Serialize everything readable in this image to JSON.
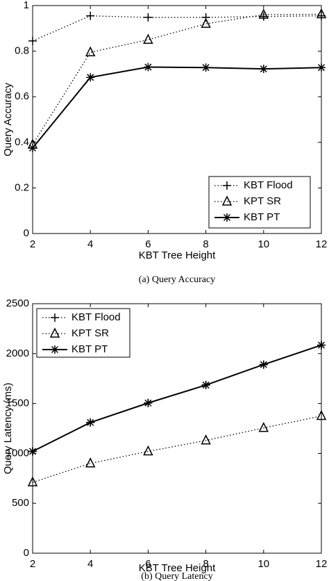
{
  "chart_data": [
    {
      "type": "line",
      "caption": "(a) Query Accuracy",
      "x_label": "KBT Tree Height",
      "y_label": "Query Accuracy",
      "x": [
        2,
        4,
        6,
        8,
        10,
        12
      ],
      "xlim": [
        2,
        12
      ],
      "xticks": [
        2,
        4,
        6,
        8,
        10,
        12
      ],
      "ylim": [
        0,
        1
      ],
      "yticks": [
        0,
        0.2,
        0.4,
        0.6,
        0.8,
        1
      ],
      "legend": "lower right",
      "grid": false,
      "series": [
        {
          "name": "KBT Flood",
          "color": "#000000",
          "marker": "plus",
          "dash": "dotted",
          "values": [
            0.845,
            0.955,
            0.948,
            0.948,
            0.952,
            0.955
          ]
        },
        {
          "name": "KPT SR",
          "color": "#000000",
          "marker": "triangle",
          "dash": "dotted",
          "values": [
            0.39,
            0.795,
            0.85,
            0.92,
            0.96,
            0.962
          ]
        },
        {
          "name": "KBT PT",
          "color": "#000000",
          "marker": "star",
          "dash": "solid",
          "values": [
            0.375,
            0.685,
            0.73,
            0.728,
            0.722,
            0.728
          ]
        }
      ]
    },
    {
      "type": "line",
      "caption": "(b) Query Latency",
      "x_label": "KBT Tree Height",
      "y_label": "Query Latency (ms)",
      "x": [
        2,
        4,
        6,
        8,
        10,
        12
      ],
      "xlim": [
        2,
        12
      ],
      "xticks": [
        2,
        4,
        6,
        8,
        10,
        12
      ],
      "ylim": [
        0,
        2500
      ],
      "yticks": [
        0,
        500,
        1000,
        1500,
        2000,
        2500
      ],
      "legend": "upper left",
      "grid": false,
      "series": [
        {
          "name": "KBT Flood",
          "color": "#000000",
          "marker": "plus",
          "dash": "dotted",
          "values": [
            1020,
            1310,
            1505,
            1685,
            1890,
            2085
          ]
        },
        {
          "name": "KPT SR",
          "color": "#000000",
          "marker": "triangle",
          "dash": "dotted",
          "values": [
            710,
            900,
            1020,
            1130,
            1255,
            1375
          ]
        },
        {
          "name": "KBT PT",
          "color": "#000000",
          "marker": "star",
          "dash": "solid",
          "values": [
            1020,
            1310,
            1505,
            1685,
            1890,
            2085
          ]
        }
      ]
    }
  ]
}
